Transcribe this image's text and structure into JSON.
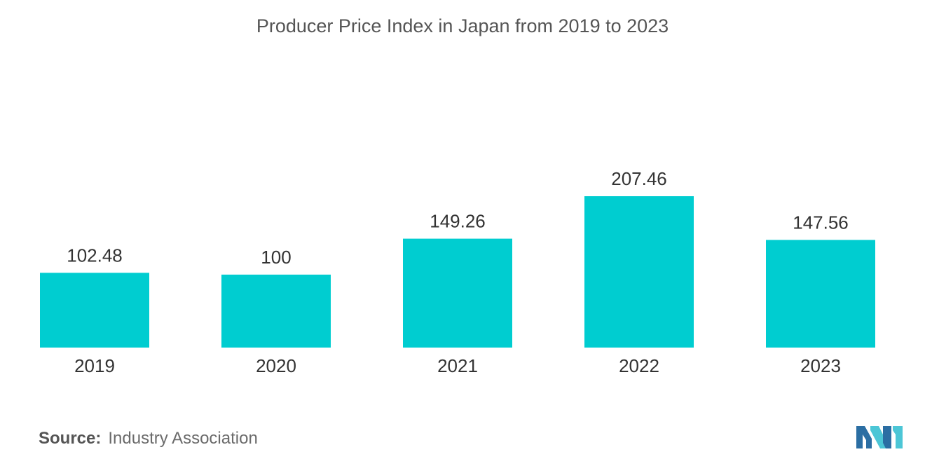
{
  "chart_data": {
    "type": "bar",
    "title": "Producer Price Index in Japan from 2019 to 2023",
    "categories": [
      "2019",
      "2020",
      "2021",
      "2022",
      "2023"
    ],
    "values": [
      102.48,
      100,
      149.26,
      207.46,
      147.56
    ],
    "value_labels": [
      "102.48",
      "100",
      "149.26",
      "207.46",
      "147.56"
    ],
    "xlabel": "",
    "ylabel": "",
    "ylim": [
      0,
      207.46
    ],
    "grid": false,
    "legend": "none",
    "bar_color": "#00cdd0"
  },
  "source": {
    "label": "Source:",
    "text": "Industry Association"
  },
  "colors": {
    "bar": "#00cdd0",
    "logo_dark": "#2b6ea3",
    "logo_light": "#4cc6d6"
  }
}
